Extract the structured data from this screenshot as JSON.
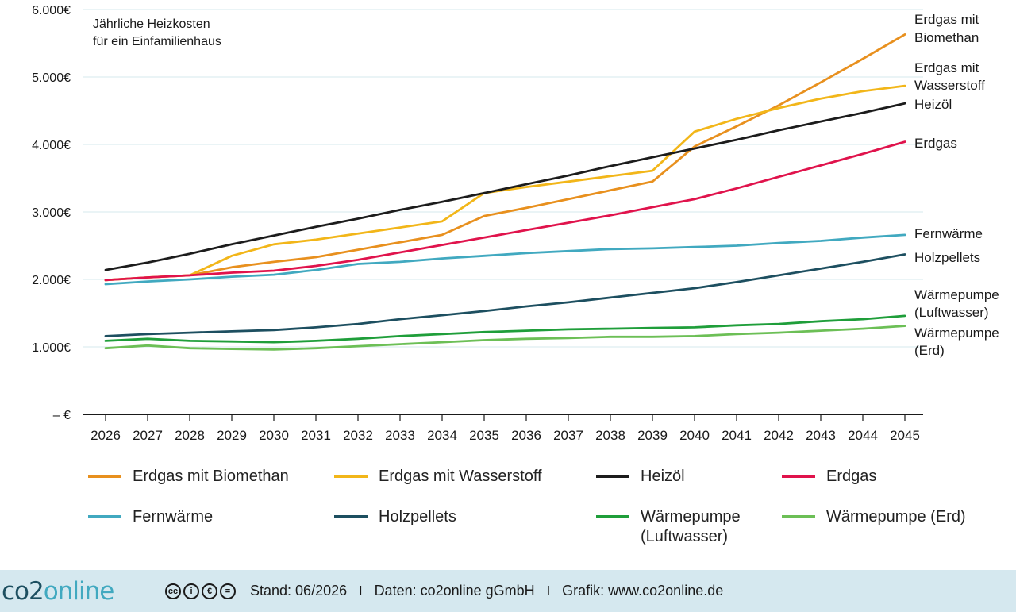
{
  "chart_data": {
    "type": "line",
    "annotation": "Jährliche Heizkosten für ein Einfamilienhaus",
    "annotation_lines": [
      "Jährliche Heizkosten",
      "für ein Einfamilienhaus"
    ],
    "x": [
      "2026",
      "2027",
      "2028",
      "2029",
      "2030",
      "2031",
      "2032",
      "2033",
      "2034",
      "2035",
      "2036",
      "2037",
      "2038",
      "2039",
      "2040",
      "2041",
      "2042",
      "2043",
      "2044",
      "2045"
    ],
    "ylim": [
      0,
      6000
    ],
    "yticks": [
      0,
      1000,
      2000,
      3000,
      4000,
      5000,
      6000
    ],
    "ytick_labels": [
      "– €",
      "1.000€",
      "2.000€",
      "3.000€",
      "4.000€",
      "5.000€",
      "6.000€"
    ],
    "grid": "horizontal",
    "legend_position": "bottom",
    "series": [
      {
        "name": "Erdgas mit Biomethan",
        "color": "#e8901e",
        "end_label": [
          "Erdgas mit",
          "Biomethan"
        ],
        "values": [
          1990,
          2030,
          2060,
          2180,
          2260,
          2330,
          2440,
          2550,
          2660,
          2940,
          3060,
          3190,
          3320,
          3450,
          3970,
          4270,
          4580,
          4920,
          5270,
          5630
        ]
      },
      {
        "name": "Erdgas mit Wasserstoff",
        "color": "#f2b619",
        "end_label": [
          "Erdgas mit",
          "Wasserstoff"
        ],
        "values": [
          1990,
          2030,
          2060,
          2350,
          2520,
          2590,
          2680,
          2770,
          2860,
          3280,
          3370,
          3450,
          3530,
          3610,
          4190,
          4380,
          4540,
          4680,
          4790,
          4870
        ]
      },
      {
        "name": "Heizöl",
        "color": "#1c1c1c",
        "end_label": [
          "Heizöl"
        ],
        "values": [
          2140,
          2250,
          2380,
          2520,
          2650,
          2780,
          2900,
          3030,
          3150,
          3280,
          3410,
          3540,
          3680,
          3810,
          3940,
          4070,
          4210,
          4340,
          4470,
          4610
        ]
      },
      {
        "name": "Erdgas",
        "color": "#e0134c",
        "end_label": [
          "Erdgas"
        ],
        "values": [
          1990,
          2030,
          2060,
          2100,
          2130,
          2200,
          2290,
          2400,
          2510,
          2620,
          2730,
          2840,
          2950,
          3070,
          3190,
          3350,
          3520,
          3690,
          3860,
          4040
        ]
      },
      {
        "name": "Fernwärme",
        "color": "#41a9c0",
        "end_label": [
          "Fernwärme"
        ],
        "values": [
          1930,
          1970,
          2000,
          2040,
          2070,
          2140,
          2230,
          2260,
          2310,
          2350,
          2390,
          2420,
          2450,
          2460,
          2480,
          2500,
          2540,
          2570,
          2620,
          2660
        ]
      },
      {
        "name": "Holzpellets",
        "color": "#1d4f60",
        "end_label": [
          "Holzpellets"
        ],
        "values": [
          1160,
          1190,
          1210,
          1230,
          1250,
          1290,
          1340,
          1410,
          1470,
          1530,
          1600,
          1660,
          1730,
          1800,
          1870,
          1960,
          2060,
          2160,
          2260,
          2370
        ]
      },
      {
        "name": "Wärmepumpe (Luftwasser)",
        "color": "#1f9e3a",
        "end_label": [
          "Wärmepumpe",
          "(Luftwasser)"
        ],
        "values": [
          1090,
          1120,
          1090,
          1080,
          1070,
          1090,
          1120,
          1160,
          1190,
          1220,
          1240,
          1260,
          1270,
          1280,
          1290,
          1320,
          1340,
          1380,
          1410,
          1460
        ]
      },
      {
        "name": "Wärmepumpe (Erd)",
        "color": "#6cbf56",
        "end_label": [
          "Wärmepumpe",
          "(Erd)"
        ],
        "values": [
          980,
          1020,
          980,
          970,
          960,
          980,
          1010,
          1040,
          1070,
          1100,
          1120,
          1130,
          1150,
          1150,
          1160,
          1190,
          1210,
          1240,
          1270,
          1310
        ]
      }
    ]
  },
  "legend": {
    "items": [
      {
        "name": "Erdgas mit Biomethan",
        "color": "#e8901e",
        "lines": [
          "Erdgas mit Biomethan"
        ]
      },
      {
        "name": "Erdgas mit Wasserstoff",
        "color": "#f2b619",
        "lines": [
          "Erdgas mit Wasserstoff"
        ]
      },
      {
        "name": "Heizöl",
        "color": "#1c1c1c",
        "lines": [
          "Heizöl"
        ]
      },
      {
        "name": "Erdgas",
        "color": "#e0134c",
        "lines": [
          "Erdgas"
        ]
      },
      {
        "name": "Fernwärme",
        "color": "#41a9c0",
        "lines": [
          "Fernwärme"
        ]
      },
      {
        "name": "Holzpellets",
        "color": "#1d4f60",
        "lines": [
          "Holzpellets"
        ]
      },
      {
        "name": "Wärmepumpe (Luftwasser)",
        "color": "#1f9e3a",
        "lines": [
          "Wärmepumpe",
          "(Luftwasser)"
        ]
      },
      {
        "name": "Wärmepumpe (Erd)",
        "color": "#6cbf56",
        "lines": [
          "Wärmepumpe (Erd)"
        ]
      }
    ]
  },
  "footer": {
    "brand_part1": "co2",
    "brand_part2": "online",
    "license_icons": [
      "cc-icon",
      "by-icon",
      "nc-icon",
      "nd-icon"
    ],
    "stand": "Stand: 06/2026",
    "separator": "I",
    "daten": "Daten: co2online gGmbH",
    "grafik": "Grafik: www.co2online.de"
  }
}
